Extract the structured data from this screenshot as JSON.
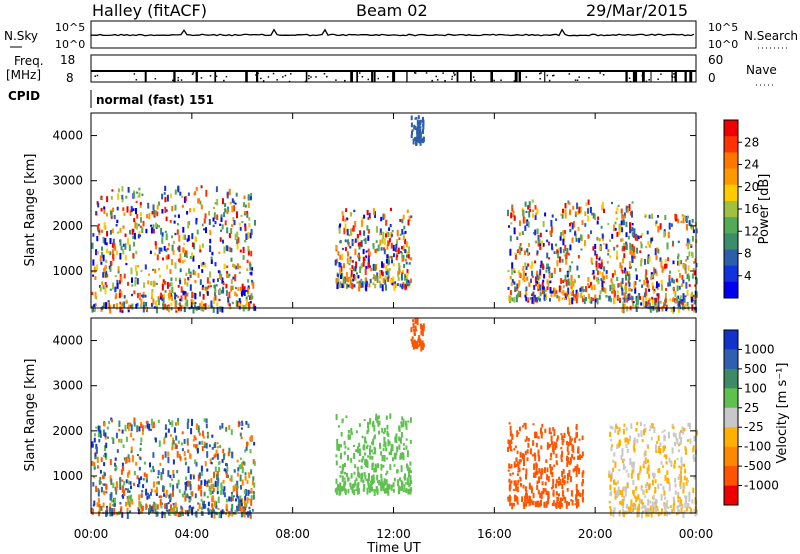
{
  "header": {
    "station": "Halley (fitACF)",
    "beam": "Beam 02",
    "date": "29/Mar/2015"
  },
  "panels": {
    "nsky": {
      "label": "N.Sky",
      "left_ticks": [
        "10^5",
        "10^0"
      ],
      "right_label": "N.Search",
      "right_ticks": [
        "10^5",
        "10^0"
      ]
    },
    "freq": {
      "label_line1": "Freq.",
      "label_line2": "[MHz]",
      "left_ticks": [
        "18",
        "8"
      ],
      "right_label": "Nave",
      "right_ticks": [
        "60",
        "0"
      ]
    },
    "cpid": {
      "label": "CPID",
      "value": "normal (fast) 151"
    }
  },
  "chart_data": [
    {
      "type": "heatmap",
      "name": "power",
      "ylabel": "Slant Range [km]",
      "xlabel": "",
      "yticks": [
        1000,
        2000,
        3000,
        4000
      ],
      "ylim": [
        180,
        4500
      ],
      "colorbar": {
        "label": "Power [dB]",
        "ticks": [
          "28",
          "24",
          "20",
          "16",
          "12",
          "8",
          "4"
        ],
        "colors": [
          "#ee0000",
          "#ff3300",
          "#ff7700",
          "#ff9900",
          "#ffcc00",
          "#a0c040",
          "#55aa55",
          "#3a8f6a",
          "#2c5faa",
          "#1133dd",
          "#0000ee"
        ]
      },
      "echo_regions": [
        {
          "t_start": "00:00",
          "t_end": "06:30",
          "r_min": 200,
          "r_max": 2900,
          "level": "mixed 4-28"
        },
        {
          "t_start": "09:40",
          "t_end": "12:40",
          "r_min": 700,
          "r_max": 2400,
          "level": "mixed 4-16"
        },
        {
          "t_start": "12:40",
          "t_end": "13:10",
          "r_min": 3900,
          "r_max": 4500,
          "level": "8"
        },
        {
          "t_start": "16:30",
          "t_end": "21:30",
          "r_min": 400,
          "r_max": 2600,
          "level": "mixed 4-24"
        },
        {
          "t_start": "21:00",
          "t_end": "24:00",
          "r_min": 200,
          "r_max": 2300,
          "level": "mixed 4-28"
        }
      ]
    },
    {
      "type": "heatmap",
      "name": "velocity",
      "ylabel": "Slant Range [km]",
      "xlabel": "Time UT",
      "xticks": [
        "00:00",
        "04:00",
        "08:00",
        "12:00",
        "16:00",
        "20:00",
        "00:00"
      ],
      "yticks": [
        1000,
        2000,
        3000,
        4000
      ],
      "ylim": [
        180,
        4500
      ],
      "colorbar": {
        "label": "Velocity [m s⁻¹]",
        "ticks": [
          "1000",
          "500",
          "100",
          "25",
          "-25",
          "-100",
          "-500",
          "-1000"
        ],
        "colors": [
          "#1133cc",
          "#2f5fb0",
          "#3f8a66",
          "#5fc050",
          "#c8c8c8",
          "#ffb000",
          "#ff8800",
          "#ff5500",
          "#ee0000"
        ]
      },
      "echo_regions": [
        {
          "t_start": "00:00",
          "t_end": "06:30",
          "r_min": 200,
          "r_max": 2300,
          "level": "mixed -500 to 1000"
        },
        {
          "t_start": "09:40",
          "t_end": "12:40",
          "r_min": 700,
          "r_max": 2400,
          "level": "100"
        },
        {
          "t_start": "12:40",
          "t_end": "13:10",
          "r_min": 3900,
          "r_max": 4500,
          "level": "-500"
        },
        {
          "t_start": "16:30",
          "t_end": "19:30",
          "r_min": 400,
          "r_max": 2200,
          "level": "-500"
        },
        {
          "t_start": "20:30",
          "t_end": "24:00",
          "r_min": 200,
          "r_max": 2200,
          "level": "25 / -100"
        }
      ]
    }
  ]
}
